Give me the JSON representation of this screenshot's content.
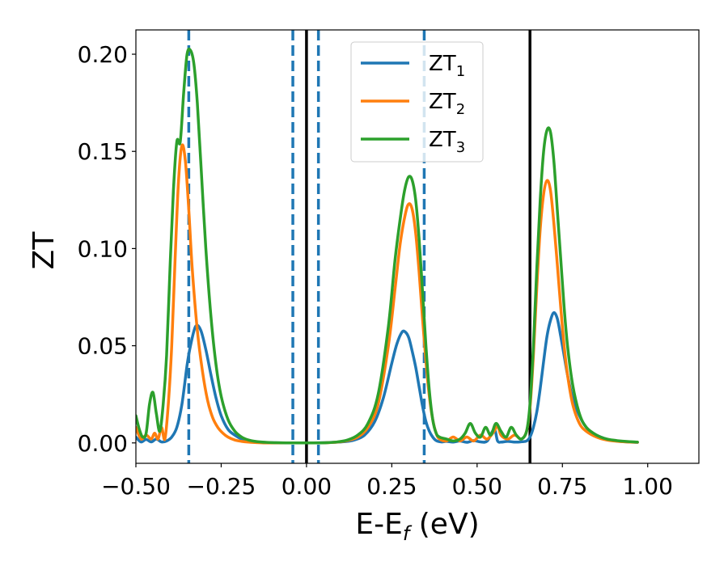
{
  "chart_data": {
    "type": "line",
    "title": "",
    "xlabel": "E-E",
    "xlabel_sub": "f",
    "xlabel_unit": " (eV)",
    "ylabel": "ZT",
    "xlim": [
      -0.5,
      1.15
    ],
    "ylim": [
      -0.0105,
      0.2125
    ],
    "xticks": [
      -0.5,
      -0.25,
      0.0,
      0.25,
      0.5,
      0.75,
      1.0
    ],
    "xtick_labels": [
      "−0.50",
      "−0.25",
      "0.00",
      "0.25",
      "0.50",
      "0.75",
      "1.00"
    ],
    "yticks": [
      0.0,
      0.05,
      0.1,
      0.15,
      0.2
    ],
    "ytick_labels": [
      "0.00",
      "0.05",
      "0.10",
      "0.15",
      "0.20"
    ],
    "grid": false,
    "legend_position": "top-center",
    "series": [
      {
        "name": "ZT",
        "sub": "1",
        "color": "#1f77b4",
        "x": [
          -0.5,
          -0.485,
          -0.47,
          -0.455,
          -0.44,
          -0.425,
          -0.41,
          -0.395,
          -0.38,
          -0.365,
          -0.35,
          -0.34,
          -0.325,
          -0.31,
          -0.295,
          -0.28,
          -0.265,
          -0.25,
          -0.23,
          -0.21,
          -0.19,
          -0.17,
          -0.15,
          -0.13,
          -0.1,
          -0.07,
          -0.04,
          -0.01,
          0.02,
          0.05,
          0.08,
          0.11,
          0.14,
          0.17,
          0.2,
          0.225,
          0.25,
          0.265,
          0.28,
          0.29,
          0.3,
          0.31,
          0.32,
          0.33,
          0.34,
          0.35,
          0.36,
          0.37,
          0.38,
          0.395,
          0.41,
          0.43,
          0.45,
          0.47,
          0.49,
          0.51,
          0.53,
          0.55,
          0.56,
          0.57,
          0.59,
          0.61,
          0.63,
          0.645,
          0.655,
          0.665,
          0.675,
          0.685,
          0.695,
          0.705,
          0.715,
          0.725,
          0.735,
          0.745,
          0.755,
          0.765,
          0.78,
          0.8,
          0.82,
          0.84,
          0.87,
          0.9,
          0.94,
          0.97
        ],
        "y": [
          0.003,
          0.0005,
          0.0018,
          0.0005,
          0.002,
          0.0005,
          0.001,
          0.003,
          0.008,
          0.02,
          0.04,
          0.05,
          0.06,
          0.058,
          0.048,
          0.035,
          0.023,
          0.014,
          0.007,
          0.004,
          0.002,
          0.001,
          0.0005,
          0.0003,
          0.0001,
          0.0,
          0.0,
          0.0,
          0.0,
          0.0001,
          0.0003,
          0.0006,
          0.0015,
          0.004,
          0.011,
          0.023,
          0.041,
          0.051,
          0.057,
          0.057,
          0.054,
          0.047,
          0.039,
          0.029,
          0.019,
          0.011,
          0.006,
          0.003,
          0.0012,
          0.0005,
          0.0008,
          0.0004,
          0.001,
          0.0003,
          0.0012,
          0.0005,
          0.001,
          0.007,
          0.001,
          0.0004,
          0.0008,
          0.0004,
          0.0006,
          0.001,
          0.003,
          0.008,
          0.016,
          0.028,
          0.042,
          0.055,
          0.063,
          0.067,
          0.064,
          0.055,
          0.045,
          0.035,
          0.023,
          0.014,
          0.008,
          0.005,
          0.0025,
          0.0012,
          0.0005,
          0.0003
        ]
      },
      {
        "name": "ZT",
        "sub": "2",
        "color": "#ff7f0e",
        "x": [
          -0.5,
          -0.485,
          -0.47,
          -0.455,
          -0.445,
          -0.435,
          -0.425,
          -0.415,
          -0.405,
          -0.395,
          -0.385,
          -0.375,
          -0.365,
          -0.355,
          -0.345,
          -0.335,
          -0.32,
          -0.305,
          -0.29,
          -0.275,
          -0.26,
          -0.245,
          -0.23,
          -0.21,
          -0.19,
          -0.17,
          -0.15,
          -0.12,
          -0.09,
          -0.06,
          -0.03,
          0.0,
          0.03,
          0.06,
          0.09,
          0.12,
          0.15,
          0.18,
          0.21,
          0.24,
          0.26,
          0.275,
          0.29,
          0.3,
          0.31,
          0.32,
          0.33,
          0.34,
          0.35,
          0.36,
          0.37,
          0.38,
          0.39,
          0.41,
          0.43,
          0.45,
          0.47,
          0.49,
          0.51,
          0.53,
          0.55,
          0.56,
          0.57,
          0.59,
          0.61,
          0.63,
          0.645,
          0.655,
          0.665,
          0.675,
          0.685,
          0.695,
          0.705,
          0.715,
          0.725,
          0.735,
          0.745,
          0.755,
          0.765,
          0.78,
          0.8,
          0.82,
          0.85,
          0.88,
          0.92,
          0.97
        ],
        "y": [
          0.008,
          0.002,
          0.004,
          0.002,
          0.005,
          0.002,
          0.008,
          0.002,
          0.02,
          0.05,
          0.095,
          0.135,
          0.153,
          0.145,
          0.12,
          0.09,
          0.058,
          0.037,
          0.022,
          0.013,
          0.008,
          0.005,
          0.003,
          0.0015,
          0.0008,
          0.0004,
          0.0002,
          0.0,
          0.0,
          0.0,
          0.0,
          0.0,
          0.0,
          0.0001,
          0.0004,
          0.0012,
          0.003,
          0.008,
          0.02,
          0.05,
          0.08,
          0.103,
          0.118,
          0.123,
          0.12,
          0.108,
          0.088,
          0.064,
          0.042,
          0.024,
          0.012,
          0.005,
          0.002,
          0.001,
          0.003,
          0.001,
          0.003,
          0.001,
          0.004,
          0.002,
          0.006,
          0.009,
          0.004,
          0.002,
          0.004,
          0.002,
          0.006,
          0.018,
          0.045,
          0.08,
          0.11,
          0.128,
          0.135,
          0.13,
          0.113,
          0.092,
          0.07,
          0.05,
          0.035,
          0.02,
          0.01,
          0.006,
          0.003,
          0.0015,
          0.0007,
          0.0003
        ]
      },
      {
        "name": "ZT",
        "sub": "3",
        "color": "#2ca02c",
        "x": [
          -0.5,
          -0.49,
          -0.48,
          -0.47,
          -0.46,
          -0.45,
          -0.44,
          -0.43,
          -0.42,
          -0.41,
          -0.4,
          -0.39,
          -0.38,
          -0.37,
          -0.36,
          -0.35,
          -0.34,
          -0.33,
          -0.32,
          -0.31,
          -0.295,
          -0.28,
          -0.265,
          -0.25,
          -0.23,
          -0.21,
          -0.19,
          -0.17,
          -0.15,
          -0.12,
          -0.09,
          -0.06,
          -0.03,
          0.0,
          0.03,
          0.06,
          0.09,
          0.12,
          0.15,
          0.18,
          0.21,
          0.24,
          0.26,
          0.28,
          0.29,
          0.3,
          0.31,
          0.32,
          0.33,
          0.34,
          0.35,
          0.36,
          0.37,
          0.38,
          0.39,
          0.41,
          0.43,
          0.45,
          0.465,
          0.48,
          0.495,
          0.51,
          0.525,
          0.54,
          0.555,
          0.57,
          0.585,
          0.6,
          0.615,
          0.63,
          0.645,
          0.655,
          0.665,
          0.675,
          0.685,
          0.695,
          0.705,
          0.715,
          0.725,
          0.735,
          0.745,
          0.755,
          0.765,
          0.78,
          0.8,
          0.82,
          0.85,
          0.88,
          0.92,
          0.97
        ],
        "y": [
          0.014,
          0.007,
          0.003,
          0.005,
          0.02,
          0.026,
          0.015,
          0.006,
          0.02,
          0.045,
          0.09,
          0.13,
          0.155,
          0.155,
          0.18,
          0.2,
          0.202,
          0.195,
          0.175,
          0.145,
          0.1,
          0.065,
          0.04,
          0.024,
          0.012,
          0.006,
          0.003,
          0.0015,
          0.0008,
          0.0003,
          0.0001,
          0.0,
          0.0,
          0.0,
          0.0,
          0.0001,
          0.0005,
          0.0015,
          0.004,
          0.01,
          0.025,
          0.06,
          0.095,
          0.122,
          0.132,
          0.137,
          0.135,
          0.125,
          0.105,
          0.078,
          0.05,
          0.027,
          0.012,
          0.005,
          0.003,
          0.002,
          0.001,
          0.002,
          0.005,
          0.01,
          0.005,
          0.003,
          0.008,
          0.004,
          0.01,
          0.006,
          0.003,
          0.008,
          0.004,
          0.002,
          0.006,
          0.02,
          0.05,
          0.09,
          0.125,
          0.15,
          0.161,
          0.16,
          0.145,
          0.12,
          0.095,
          0.07,
          0.05,
          0.03,
          0.015,
          0.008,
          0.004,
          0.002,
          0.001,
          0.0004
        ]
      }
    ],
    "vlines": [
      {
        "x": -0.345,
        "style": "dashed",
        "color": "#1f77b4"
      },
      {
        "x": -0.04,
        "style": "dashed",
        "color": "#1f77b4"
      },
      {
        "x": 0.035,
        "style": "dashed",
        "color": "#1f77b4"
      },
      {
        "x": 0.345,
        "style": "dashed",
        "color": "#1f77b4"
      },
      {
        "x": 0.0,
        "style": "solid",
        "color": "#000000"
      },
      {
        "x": 0.655,
        "style": "solid",
        "color": "#000000"
      }
    ]
  }
}
